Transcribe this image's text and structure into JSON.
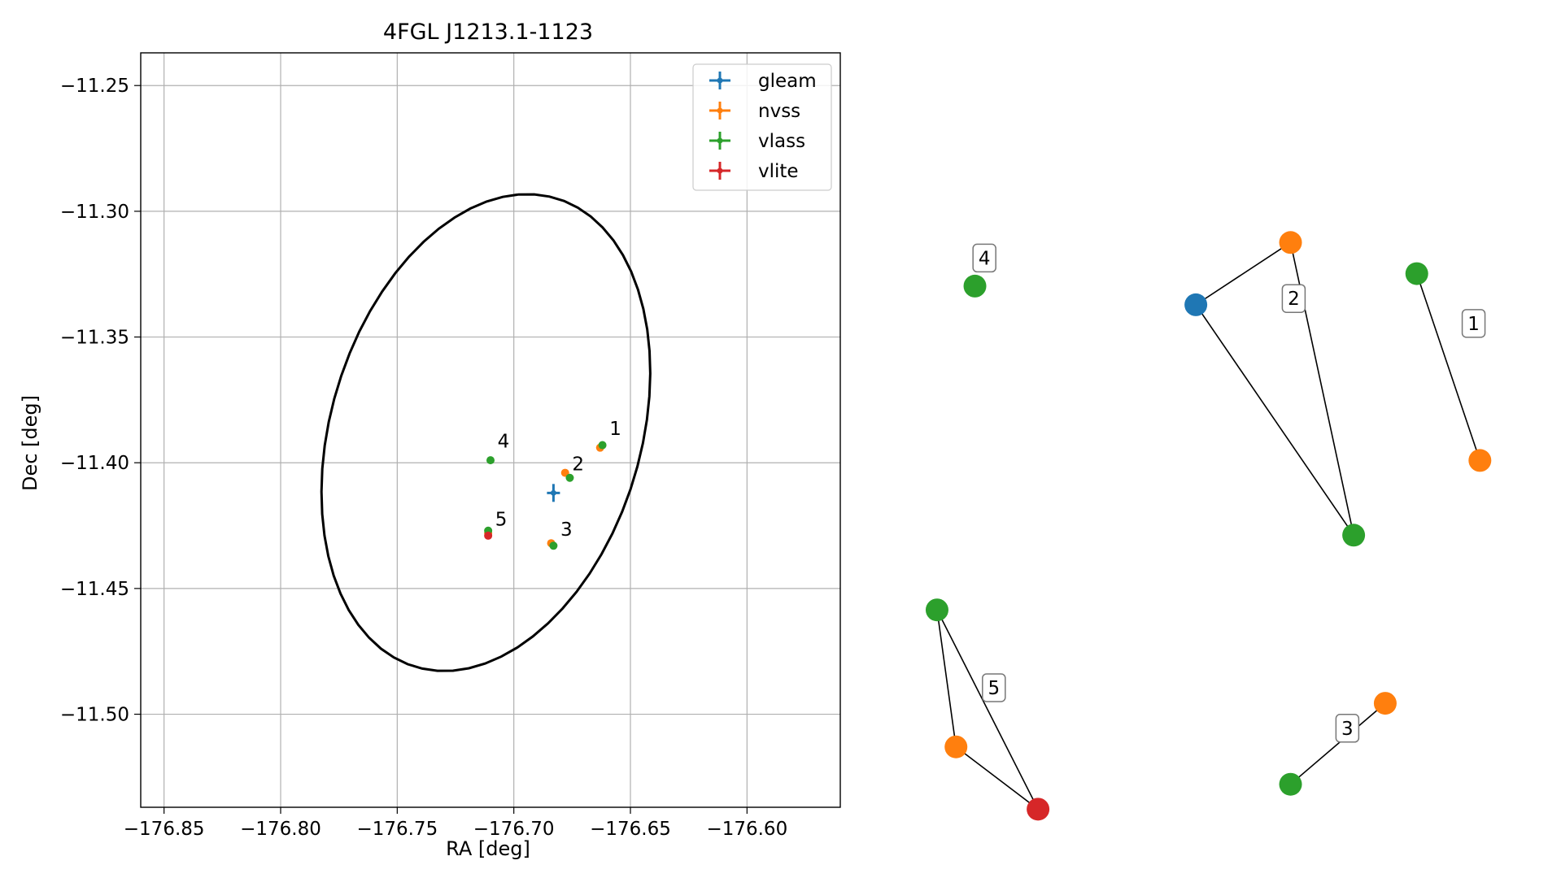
{
  "chart_data": [
    {
      "type": "scatter",
      "title": "4FGL J1213.1-1123",
      "xlabel": "RA [deg]",
      "ylabel": "Dec [deg]",
      "xlim": [
        -176.86,
        -176.56
      ],
      "ylim": [
        -11.537,
        -11.237
      ],
      "x_ticks": [
        -176.85,
        -176.8,
        -176.75,
        -176.7,
        -176.65,
        -176.6
      ],
      "x_tick_labels": [
        "−176.85",
        "−176.80",
        "−176.75",
        "−176.70",
        "−176.65",
        "−176.60"
      ],
      "y_ticks": [
        -11.25,
        -11.3,
        -11.35,
        -11.4,
        -11.45,
        -11.5
      ],
      "y_tick_labels": [
        "−11.25",
        "−11.30",
        "−11.35",
        "−11.40",
        "−11.45",
        "−11.50"
      ],
      "grid": true,
      "legend_position": "upper right",
      "series": [
        {
          "name": "gleam",
          "color": "#1f77b4",
          "points": [
            {
              "x": -176.683,
              "y": -11.412
            }
          ],
          "error_marker": true
        },
        {
          "name": "nvss",
          "color": "#ff7f0e",
          "points": [
            {
              "x": -176.663,
              "y": -11.394
            },
            {
              "x": -176.678,
              "y": -11.404
            },
            {
              "x": -176.684,
              "y": -11.432
            },
            {
              "x": -176.711,
              "y": -11.428
            }
          ]
        },
        {
          "name": "vlass",
          "color": "#2ca02c",
          "points": [
            {
              "x": -176.662,
              "y": -11.393
            },
            {
              "x": -176.676,
              "y": -11.406
            },
            {
              "x": -176.683,
              "y": -11.433
            },
            {
              "x": -176.71,
              "y": -11.399
            },
            {
              "x": -176.711,
              "y": -11.427
            }
          ]
        },
        {
          "name": "vlite",
          "color": "#d62728",
          "points": [
            {
              "x": -176.711,
              "y": -11.429
            }
          ]
        }
      ],
      "annotations": [
        {
          "text": "1",
          "x": -176.659,
          "y": -11.389
        },
        {
          "text": "2",
          "x": -176.675,
          "y": -11.403
        },
        {
          "text": "3",
          "x": -176.68,
          "y": -11.429
        },
        {
          "text": "4",
          "x": -176.707,
          "y": -11.394
        },
        {
          "text": "5",
          "x": -176.708,
          "y": -11.425
        }
      ],
      "ellipse": {
        "center_x": -176.712,
        "center_y": -11.388,
        "semi_major": 0.098,
        "semi_minor": 0.066,
        "angle_deg": 70,
        "color": "#000000"
      }
    },
    {
      "type": "network",
      "nodes": [
        {
          "id": "n4",
          "color": "#2ca02c",
          "x": 0.02,
          "y": 0.85
        },
        {
          "id": "g2",
          "color": "#1f77b4",
          "x": 0.37,
          "y": 0.82
        },
        {
          "id": "o2",
          "color": "#ff7f0e",
          "x": 0.52,
          "y": 0.92
        },
        {
          "id": "v2",
          "color": "#2ca02c",
          "x": 0.62,
          "y": 0.45
        },
        {
          "id": "v1",
          "color": "#2ca02c",
          "x": 0.72,
          "y": 0.87
        },
        {
          "id": "o1",
          "color": "#ff7f0e",
          "x": 0.82,
          "y": 0.57
        },
        {
          "id": "v5",
          "color": "#2ca02c",
          "x": -0.04,
          "y": 0.33
        },
        {
          "id": "o5",
          "color": "#ff7f0e",
          "x": -0.01,
          "y": 0.11
        },
        {
          "id": "r5",
          "color": "#d62728",
          "x": 0.12,
          "y": 0.01
        },
        {
          "id": "o3",
          "color": "#ff7f0e",
          "x": 0.67,
          "y": 0.18
        },
        {
          "id": "v3",
          "color": "#2ca02c",
          "x": 0.52,
          "y": 0.05
        }
      ],
      "edges": [
        [
          "g2",
          "o2"
        ],
        [
          "g2",
          "v2"
        ],
        [
          "o2",
          "v2"
        ],
        [
          "v1",
          "o1"
        ],
        [
          "v5",
          "o5"
        ],
        [
          "v5",
          "r5"
        ],
        [
          "o5",
          "r5"
        ],
        [
          "o3",
          "v3"
        ]
      ],
      "group_labels": [
        {
          "text": "4",
          "x": 0.035,
          "y": 0.895
        },
        {
          "text": "2",
          "x": 0.525,
          "y": 0.83
        },
        {
          "text": "1",
          "x": 0.81,
          "y": 0.79
        },
        {
          "text": "5",
          "x": 0.05,
          "y": 0.205
        },
        {
          "text": "3",
          "x": 0.61,
          "y": 0.14
        }
      ]
    }
  ]
}
